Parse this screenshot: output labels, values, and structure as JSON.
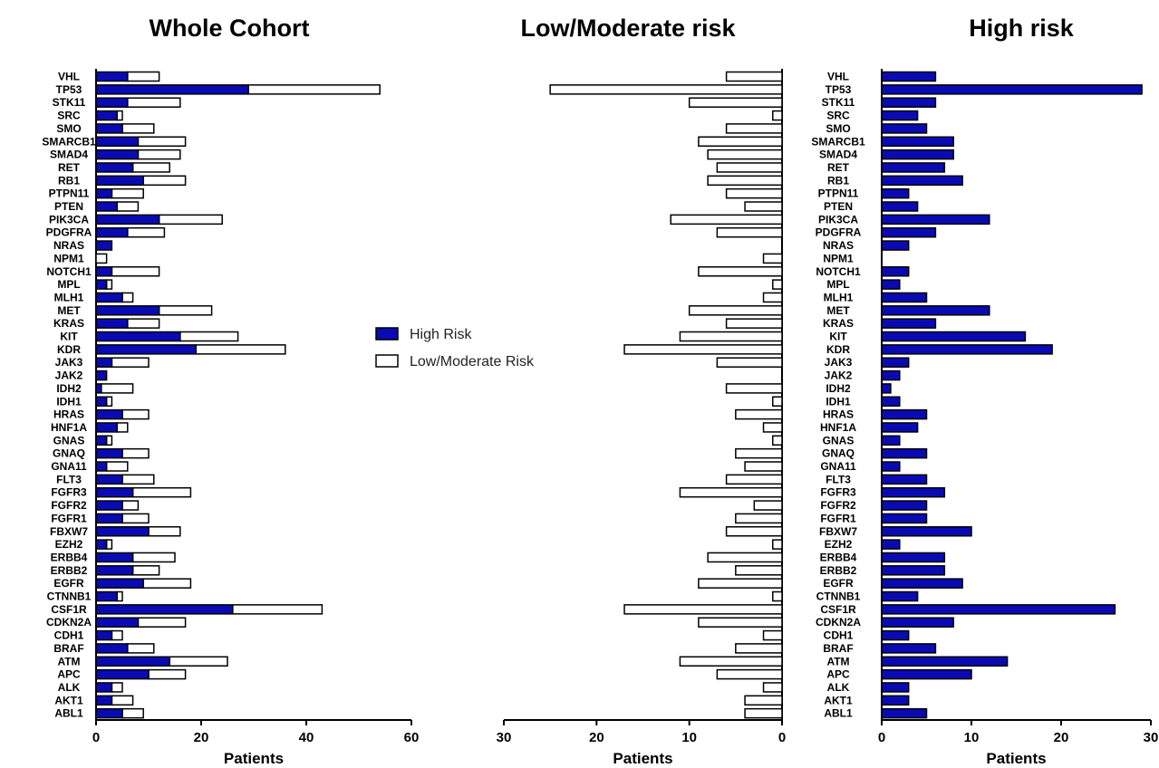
{
  "colors": {
    "high_risk": "#0a0ab4",
    "low_moderate": "#ffffff",
    "stroke": "#000000"
  },
  "legend": {
    "high_label": "High Risk",
    "low_label": "Low/Moderate Risk",
    "placement": "center"
  },
  "chart_data": [
    {
      "type": "bar",
      "orientation": "horizontal",
      "stacked": true,
      "title": "Whole Cohort",
      "xlabel": "Patients",
      "xlim": [
        0,
        60
      ],
      "xticks": [
        "0",
        "20",
        "40",
        "60"
      ],
      "categories": [
        "VHL",
        "TP53",
        "STK11",
        "SRC",
        "SMO",
        "SMARCB1",
        "SMAD4",
        "RET",
        "RB1",
        "PTPN11",
        "PTEN",
        "PIK3CA",
        "PDGFRA",
        "NRAS",
        "NPM1",
        "NOTCH1",
        "MPL",
        "MLH1",
        "MET",
        "KRAS",
        "KIT",
        "KDR",
        "JAK3",
        "JAK2",
        "IDH2",
        "IDH1",
        "HRAS",
        "HNF1A",
        "GNAS",
        "GNAQ",
        "GNA11",
        "FLT3",
        "FGFR3",
        "FGFR2",
        "FGFR1",
        "FBXW7",
        "EZH2",
        "ERBB4",
        "ERBB2",
        "EGFR",
        "CTNNB1",
        "CSF1R",
        "CDKN2A",
        "CDH1",
        "BRAF",
        "ATM",
        "APC",
        "ALK",
        "AKT1",
        "ABL1"
      ],
      "series": [
        {
          "name": "High Risk",
          "values": [
            6,
            29,
            6,
            4,
            5,
            8,
            8,
            7,
            9,
            3,
            4,
            12,
            6,
            3,
            0,
            3,
            2,
            5,
            12,
            6,
            16,
            19,
            3,
            2,
            1,
            2,
            5,
            4,
            2,
            5,
            2,
            5,
            7,
            5,
            5,
            10,
            2,
            7,
            7,
            9,
            4,
            26,
            8,
            3,
            6,
            14,
            10,
            3,
            3,
            5
          ]
        },
        {
          "name": "Low/Moderate Risk",
          "values": [
            6,
            25,
            10,
            1,
            6,
            9,
            8,
            7,
            8,
            6,
            4,
            12,
            7,
            0,
            2,
            9,
            1,
            2,
            10,
            6,
            11,
            17,
            7,
            0,
            6,
            1,
            5,
            2,
            1,
            5,
            4,
            6,
            11,
            3,
            5,
            6,
            1,
            8,
            5,
            9,
            1,
            17,
            9,
            2,
            5,
            11,
            7,
            2,
            4,
            4
          ]
        }
      ]
    },
    {
      "type": "bar",
      "orientation": "horizontal",
      "reversed_x": true,
      "title": "Low/Moderate risk",
      "xlabel": "Patients",
      "xlim": [
        0,
        30
      ],
      "xticks": [
        "30",
        "20",
        "10",
        "0"
      ],
      "categories": [
        "VHL",
        "TP53",
        "STK11",
        "SRC",
        "SMO",
        "SMARCB1",
        "SMAD4",
        "RET",
        "RB1",
        "PTPN11",
        "PTEN",
        "PIK3CA",
        "PDGFRA",
        "NRAS",
        "NPM1",
        "NOTCH1",
        "MPL",
        "MLH1",
        "MET",
        "KRAS",
        "KIT",
        "KDR",
        "JAK3",
        "JAK2",
        "IDH2",
        "IDH1",
        "HRAS",
        "HNF1A",
        "GNAS",
        "GNAQ",
        "GNA11",
        "FLT3",
        "FGFR3",
        "FGFR2",
        "FGFR1",
        "FBXW7",
        "EZH2",
        "ERBB4",
        "ERBB2",
        "EGFR",
        "CTNNB1",
        "CSF1R",
        "CDKN2A",
        "CDH1",
        "BRAF",
        "ATM",
        "APC",
        "ALK",
        "AKT1",
        "ABL1"
      ],
      "values": [
        6,
        25,
        10,
        1,
        6,
        9,
        8,
        7,
        8,
        6,
        4,
        12,
        7,
        0,
        2,
        9,
        1,
        2,
        10,
        6,
        11,
        17,
        7,
        0,
        6,
        1,
        5,
        2,
        1,
        5,
        4,
        6,
        11,
        3,
        5,
        6,
        1,
        8,
        5,
        9,
        1,
        17,
        9,
        2,
        5,
        11,
        7,
        2,
        4,
        4
      ]
    },
    {
      "type": "bar",
      "orientation": "horizontal",
      "title": "High risk",
      "xlabel": "Patients",
      "xlim": [
        0,
        30
      ],
      "xticks": [
        "0",
        "10",
        "20",
        "30"
      ],
      "categories": [
        "VHL",
        "TP53",
        "STK11",
        "SRC",
        "SMO",
        "SMARCB1",
        "SMAD4",
        "RET",
        "RB1",
        "PTPN11",
        "PTEN",
        "PIK3CA",
        "PDGFRA",
        "NRAS",
        "NPM1",
        "NOTCH1",
        "MPL",
        "MLH1",
        "MET",
        "KRAS",
        "KIT",
        "KDR",
        "JAK3",
        "JAK2",
        "IDH2",
        "IDH1",
        "HRAS",
        "HNF1A",
        "GNAS",
        "GNAQ",
        "GNA11",
        "FLT3",
        "FGFR3",
        "FGFR2",
        "FGFR1",
        "FBXW7",
        "EZH2",
        "ERBB4",
        "ERBB2",
        "EGFR",
        "CTNNB1",
        "CSF1R",
        "CDKN2A",
        "CDH1",
        "BRAF",
        "ATM",
        "APC",
        "ALK",
        "AKT1",
        "ABL1"
      ],
      "values": [
        6,
        29,
        6,
        4,
        5,
        8,
        8,
        7,
        9,
        3,
        4,
        12,
        6,
        3,
        0,
        3,
        2,
        5,
        12,
        6,
        16,
        19,
        3,
        2,
        1,
        2,
        5,
        4,
        2,
        5,
        2,
        5,
        7,
        5,
        5,
        10,
        2,
        7,
        7,
        9,
        4,
        26,
        8,
        3,
        6,
        14,
        10,
        3,
        3,
        5
      ]
    }
  ]
}
